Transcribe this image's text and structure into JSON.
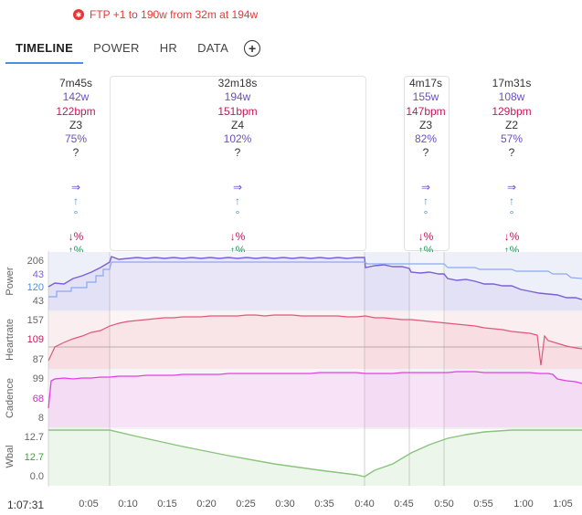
{
  "notice": {
    "text": "FTP +1 to 190w from 32m at 194w",
    "icon": "alert-star-icon",
    "color": "#e53935"
  },
  "tabs": [
    "TIMELINE",
    "POWER",
    "HR",
    "DATA"
  ],
  "active_tab": "TIMELINE",
  "add_tab_icon": "plus-circle-icon",
  "intervals": [
    {
      "duration": "7m45s",
      "power": "142w",
      "hr": "122bpm",
      "zone": "Z3",
      "pct": "75%",
      "q": "?",
      "a1": "⇒",
      "a2": "↑",
      "a3": "°",
      "hr_drift": "↓%",
      "pw_drift": "↑%"
    },
    {
      "duration": "32m18s",
      "power": "194w",
      "hr": "151bpm",
      "zone": "Z4",
      "pct": "102%",
      "q": "?",
      "a1": "⇒",
      "a2": "↑",
      "a3": "°",
      "hr_drift": "↓%",
      "pw_drift": "↑%"
    },
    {
      "duration": "4m17s",
      "power": "155w",
      "hr": "147bpm",
      "zone": "Z3",
      "pct": "82%",
      "q": "?",
      "a1": "⇒",
      "a2": "↑",
      "a3": "°",
      "hr_drift": "↓%",
      "pw_drift": "↑%"
    },
    {
      "duration": "17m31s",
      "power": "108w",
      "hr": "129bpm",
      "zone": "Z2",
      "pct": "57%",
      "q": "?",
      "a1": "⇒",
      "a2": "↑",
      "a3": "°",
      "hr_drift": "↓%",
      "pw_drift": "↑%"
    }
  ],
  "colors": {
    "power": "#7b5fd4",
    "power_ref": "#8aa9f0",
    "heartrate": "#e0577a",
    "cadence": "#e040e0",
    "wbal": "#88c47a",
    "blue_label": "#4a90e2"
  },
  "panels": {
    "power": {
      "label": "Power",
      "ticks": [
        "206",
        "43",
        "120",
        "43"
      ]
    },
    "heartrate": {
      "label": "Heartrate",
      "ticks": [
        "157",
        "109",
        "87"
      ]
    },
    "cadence": {
      "label": "Cadence",
      "ticks": [
        "99",
        "68",
        "8"
      ]
    },
    "wbal": {
      "label": "Wbal",
      "ticks": [
        "12.7",
        "12.7",
        "0.0"
      ]
    }
  },
  "elapsed": "1:07:31",
  "x_ticks": [
    "0:05",
    "0:10",
    "0:15",
    "0:20",
    "0:25",
    "0:30",
    "0:35",
    "0:40",
    "0:45",
    "0:50",
    "0:55",
    "1:00",
    "1:05"
  ]
}
